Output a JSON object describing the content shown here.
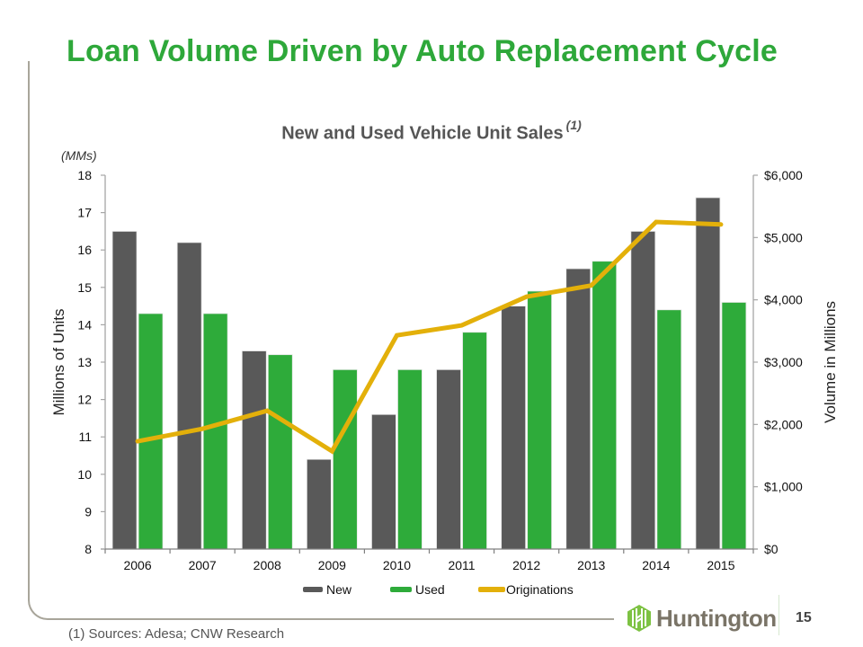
{
  "slide": {
    "title": "Loan Volume Driven by Auto Replacement Cycle",
    "footnote": "(1) Sources: Adesa; CNW Research",
    "page_number": "15",
    "logo_text": "Huntington",
    "units_note": "(MMs)"
  },
  "colors": {
    "new": "#595959",
    "used": "#2eab3a",
    "originations": "#e3b00a",
    "title": "#2ea83a",
    "axis": "#a6a6a6"
  },
  "chart_data": {
    "type": "bar",
    "title": "New and Used Vehicle Unit Sales",
    "title_superscript": "(1)",
    "categories": [
      "2006",
      "2007",
      "2008",
      "2009",
      "2010",
      "2011",
      "2012",
      "2013",
      "2014",
      "2015"
    ],
    "series": [
      {
        "name": "New",
        "type": "bar",
        "axis": "left",
        "values": [
          16.5,
          16.2,
          13.3,
          10.4,
          11.6,
          12.8,
          14.5,
          15.5,
          16.5,
          17.4
        ]
      },
      {
        "name": "Used",
        "type": "bar",
        "axis": "left",
        "values": [
          14.3,
          14.3,
          13.2,
          12.8,
          12.8,
          13.8,
          14.9,
          15.7,
          14.4,
          14.6
        ]
      },
      {
        "name": "Originations",
        "type": "line",
        "axis": "right",
        "values": [
          1730,
          1930,
          2220,
          1570,
          3430,
          3590,
          4050,
          4230,
          5250,
          5210
        ]
      }
    ],
    "xlabel": "",
    "ylabel": "Millions of Units",
    "ylabel_right": "Volume in Millions",
    "ylim": [
      8,
      18
    ],
    "yticks": [
      "8",
      "9",
      "10",
      "11",
      "12",
      "13",
      "14",
      "15",
      "16",
      "17",
      "18"
    ],
    "ylim_right": [
      0,
      6000
    ],
    "yticks_right": [
      "$0",
      "$1,000",
      "$2,000",
      "$3,000",
      "$4,000",
      "$5,000",
      "$6,000"
    ],
    "grid": false,
    "legend": [
      "New",
      "Used",
      "Originations"
    ],
    "legend_position": "bottom"
  }
}
